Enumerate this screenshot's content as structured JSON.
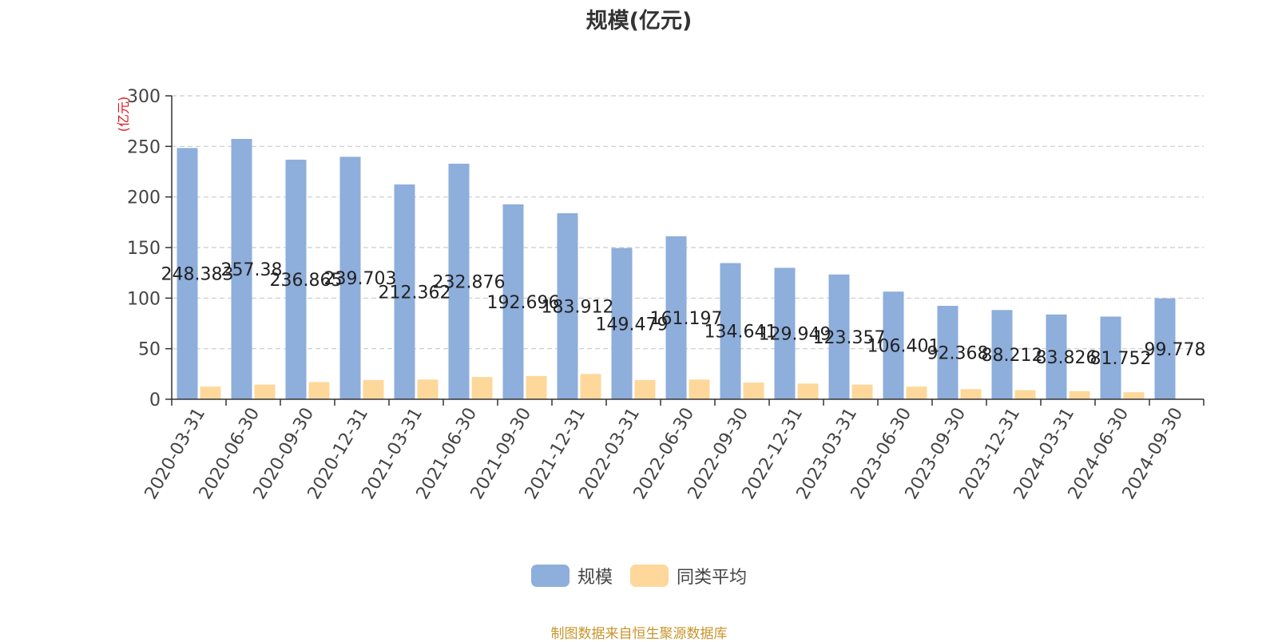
{
  "chart_data": {
    "type": "bar",
    "title": "规模(亿元)",
    "ylabel": "(亿元)",
    "xlabel": "",
    "ylim": [
      0,
      300
    ],
    "yticks": [
      0,
      50,
      100,
      150,
      200,
      250,
      300
    ],
    "grid": true,
    "legend_position": "bottom-center",
    "categories": [
      "2020-03-31",
      "2020-06-30",
      "2020-09-30",
      "2020-12-31",
      "2021-03-31",
      "2021-06-30",
      "2021-09-30",
      "2021-12-31",
      "2022-03-31",
      "2022-06-30",
      "2022-09-30",
      "2022-12-31",
      "2023-03-31",
      "2023-06-30",
      "2023-09-30",
      "2023-12-31",
      "2024-03-31",
      "2024-06-30",
      "2024-09-30"
    ],
    "series": [
      {
        "name": "规模",
        "color": "#8eaedb",
        "values": [
          248.383,
          257.38,
          236.865,
          239.703,
          212.362,
          232.876,
          192.696,
          183.912,
          149.479,
          161.197,
          134.641,
          129.949,
          123.357,
          106.401,
          92.368,
          88.212,
          83.826,
          81.752,
          99.778
        ],
        "labels": [
          "248.383",
          "257.38",
          "236.865",
          "239.703",
          "212.362",
          "232.876",
          "192.696",
          "183.912",
          "149.479",
          "161.197",
          "134.641",
          "129.949",
          "123.357",
          "106.401",
          "92.368",
          "88.212",
          "83.826",
          "81.752",
          "99.778"
        ]
      },
      {
        "name": "同类平均",
        "color": "#fdd89a",
        "values": [
          12.5,
          14.5,
          17,
          19,
          19.5,
          22,
          23,
          25,
          19,
          19.5,
          16.5,
          15.5,
          14.5,
          12.5,
          10,
          9,
          8,
          7,
          0
        ]
      }
    ]
  },
  "footer": {
    "source": "制图数据来自恒生聚源数据库"
  },
  "colors": {
    "axis": "#333333",
    "grid": "#cccccc",
    "ylabel": "#e0141e"
  }
}
